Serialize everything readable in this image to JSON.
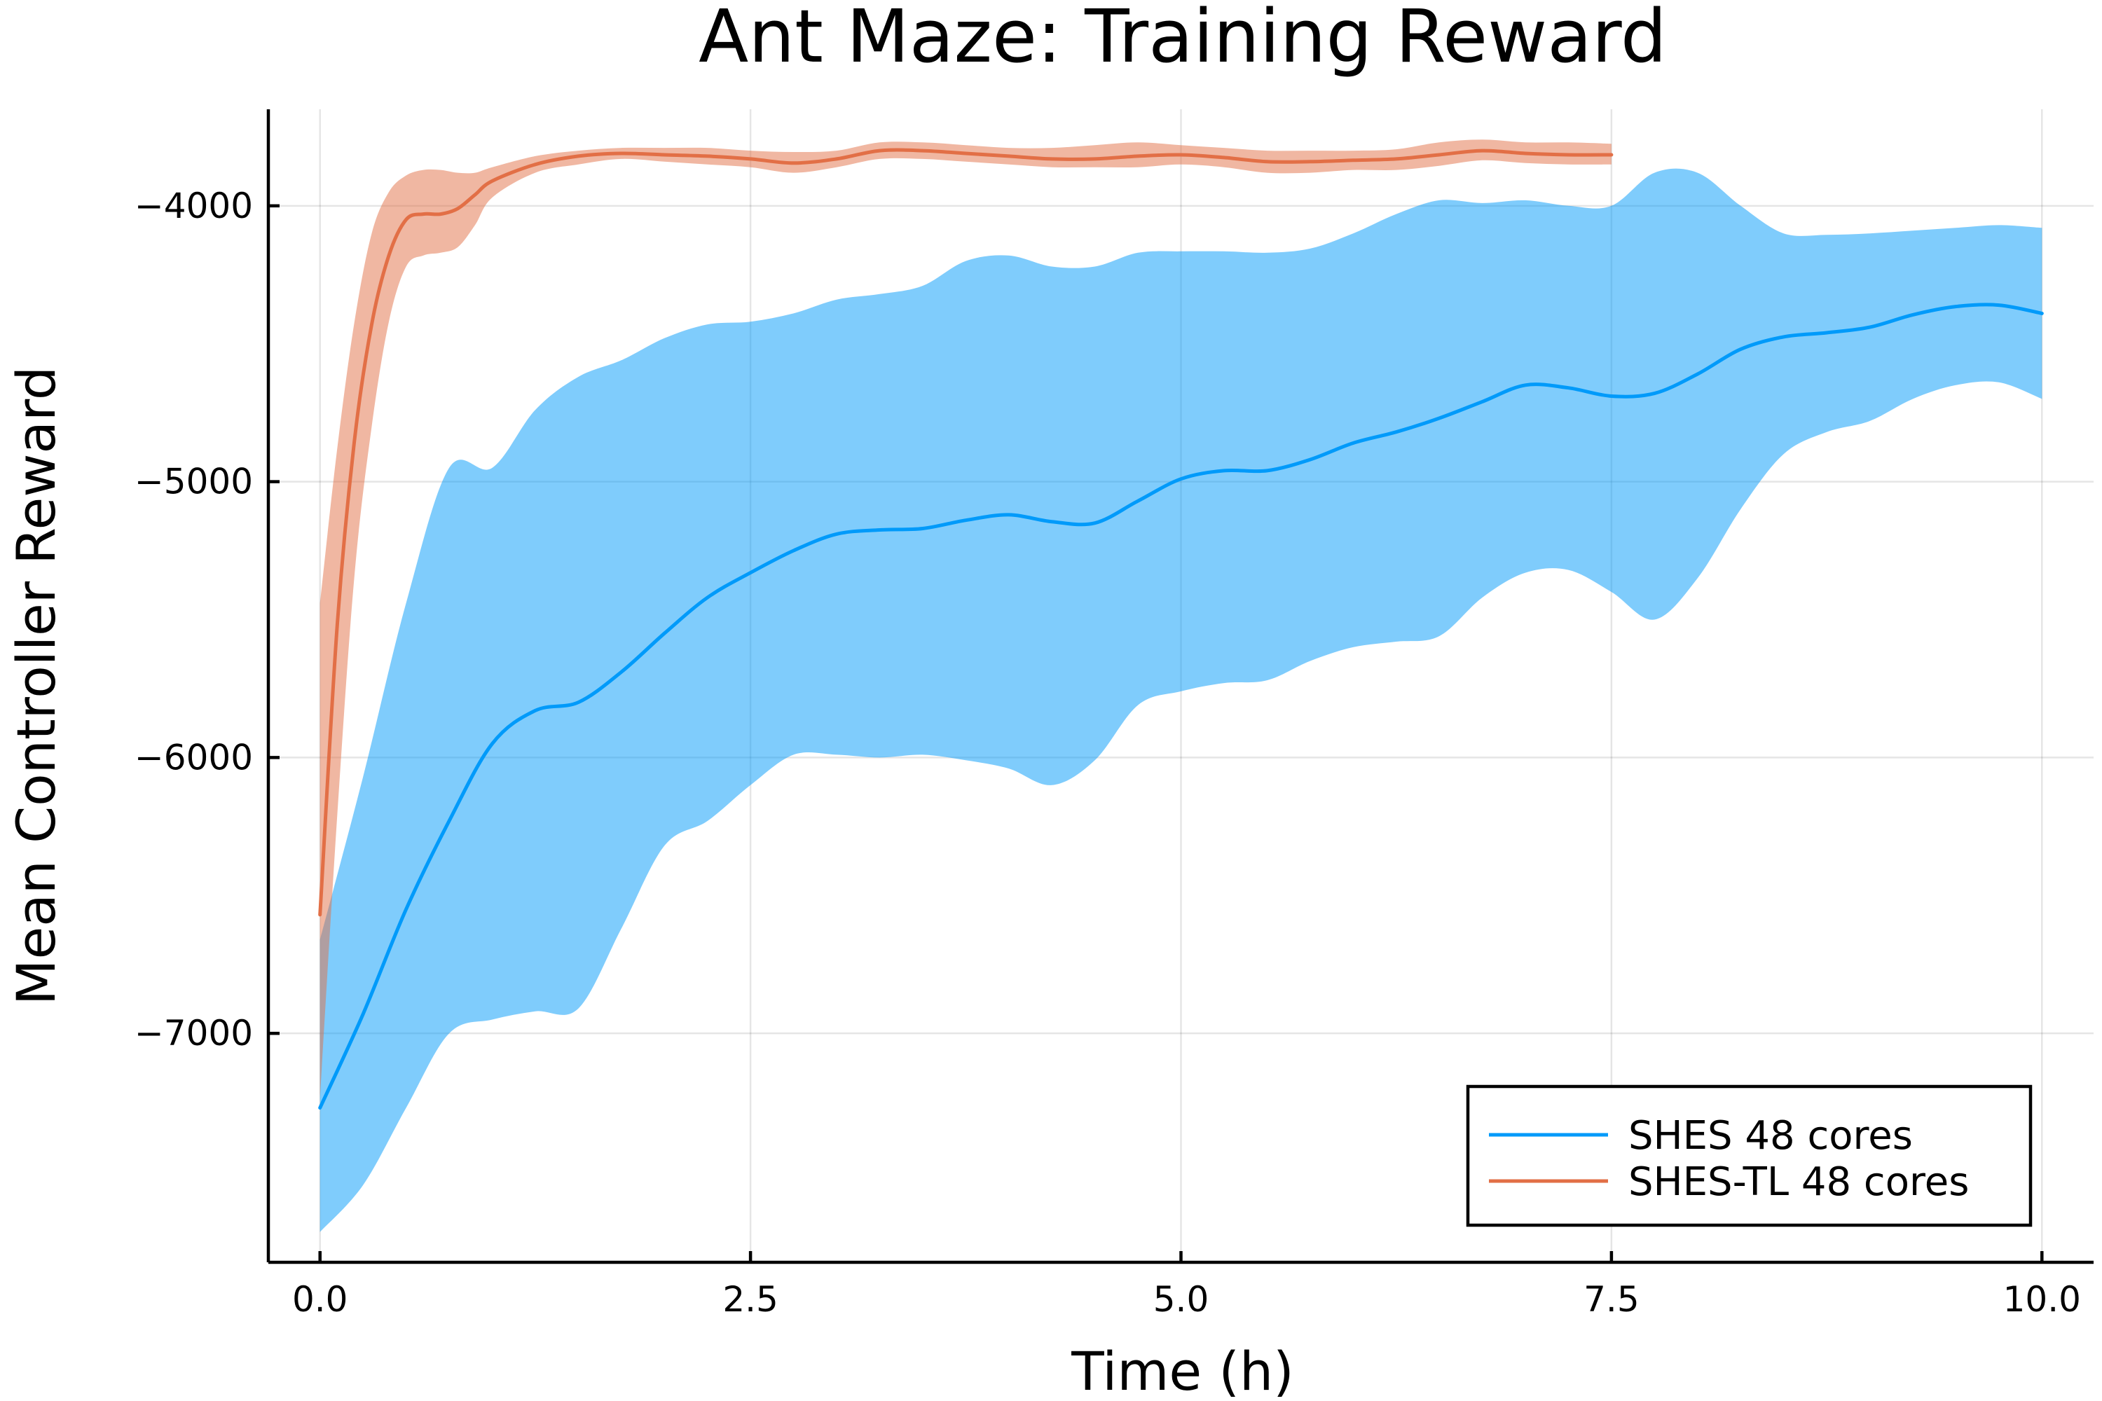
{
  "chart_data": {
    "type": "line",
    "title": "Ant Maze: Training Reward",
    "xlabel": "Time (h)",
    "ylabel": "Mean Controller Reward",
    "xlim": [
      -0.3,
      10.3
    ],
    "ylim": [
      -7830,
      -3650
    ],
    "xticks": [
      0.0,
      2.5,
      5.0,
      7.5,
      10.0
    ],
    "xtick_labels": [
      "0.0",
      "2.5",
      "5.0",
      "7.5",
      "10.0"
    ],
    "yticks": [
      -4000,
      -5000,
      -6000,
      -7000
    ],
    "ytick_labels": [
      "−4000",
      "−5000",
      "−6000",
      "−7000"
    ],
    "grid": true,
    "legend_position": "bottom-right",
    "series": [
      {
        "name": "SHES 48 cores",
        "color": "#009AFA",
        "band_color": "#009AFA",
        "x": [
          0.0,
          0.25,
          0.5,
          0.75,
          1.0,
          1.25,
          1.5,
          1.75,
          2.0,
          2.25,
          2.5,
          2.75,
          3.0,
          3.25,
          3.5,
          3.75,
          4.0,
          4.25,
          4.5,
          4.75,
          5.0,
          5.25,
          5.5,
          5.75,
          6.0,
          6.25,
          6.5,
          6.75,
          7.0,
          7.25,
          7.5,
          7.75,
          8.0,
          8.25,
          8.5,
          8.75,
          9.0,
          9.25,
          9.5,
          9.75,
          10.0
        ],
        "y": [
          -7270,
          -6930,
          -6550,
          -6230,
          -5950,
          -5830,
          -5800,
          -5690,
          -5550,
          -5420,
          -5330,
          -5250,
          -5190,
          -5175,
          -5170,
          -5140,
          -5120,
          -5145,
          -5150,
          -5070,
          -4990,
          -4960,
          -4960,
          -4920,
          -4860,
          -4820,
          -4770,
          -4710,
          -4650,
          -4660,
          -4690,
          -4680,
          -4610,
          -4520,
          -4475,
          -4460,
          -4440,
          -4395,
          -4365,
          -4360,
          -4390
        ],
        "upper": [
          -6660,
          -6070,
          -5440,
          -4950,
          -4950,
          -4740,
          -4620,
          -4560,
          -4480,
          -4430,
          -4420,
          -4390,
          -4340,
          -4320,
          -4290,
          -4200,
          -4180,
          -4220,
          -4220,
          -4170,
          -4165,
          -4165,
          -4170,
          -4155,
          -4100,
          -4030,
          -3980,
          -3990,
          -3980,
          -4000,
          -4000,
          -3880,
          -3880,
          -4000,
          -4100,
          -4105,
          -4100,
          -4090,
          -4080,
          -4070,
          -4080
        ],
        "lower": [
          -7720,
          -7550,
          -7270,
          -7000,
          -6950,
          -6920,
          -6910,
          -6620,
          -6320,
          -6230,
          -6100,
          -5990,
          -5990,
          -6000,
          -5990,
          -6010,
          -6040,
          -6100,
          -6010,
          -5810,
          -5760,
          -5730,
          -5720,
          -5650,
          -5600,
          -5580,
          -5560,
          -5420,
          -5330,
          -5320,
          -5400,
          -5500,
          -5350,
          -5100,
          -4900,
          -4820,
          -4780,
          -4700,
          -4650,
          -4640,
          -4700
        ]
      },
      {
        "name": "SHES-TL 48 cores",
        "color": "#E26F46",
        "band_color": "#E26F46",
        "x": [
          0.0,
          0.1,
          0.2,
          0.3,
          0.4,
          0.5,
          0.6,
          0.7,
          0.8,
          0.9,
          1.0,
          1.25,
          1.5,
          1.75,
          2.0,
          2.25,
          2.5,
          2.75,
          3.0,
          3.25,
          3.5,
          3.75,
          4.0,
          4.25,
          4.5,
          4.75,
          5.0,
          5.25,
          5.5,
          5.75,
          6.0,
          6.25,
          6.5,
          6.75,
          7.0,
          7.25,
          7.5
        ],
        "y": [
          -6570,
          -5520,
          -4850,
          -4430,
          -4180,
          -4050,
          -4030,
          -4030,
          -4010,
          -3960,
          -3910,
          -3850,
          -3820,
          -3810,
          -3815,
          -3820,
          -3830,
          -3845,
          -3830,
          -3800,
          -3800,
          -3810,
          -3820,
          -3830,
          -3830,
          -3820,
          -3815,
          -3825,
          -3840,
          -3840,
          -3835,
          -3830,
          -3815,
          -3800,
          -3810,
          -3815,
          -3815
        ],
        "upper": [
          -5440,
          -4880,
          -4420,
          -4100,
          -3950,
          -3890,
          -3870,
          -3870,
          -3880,
          -3880,
          -3860,
          -3820,
          -3800,
          -3790,
          -3790,
          -3790,
          -3800,
          -3805,
          -3800,
          -3770,
          -3770,
          -3780,
          -3790,
          -3790,
          -3780,
          -3770,
          -3780,
          -3790,
          -3800,
          -3800,
          -3800,
          -3795,
          -3770,
          -3760,
          -3770,
          -3770,
          -3775
        ],
        "lower": [
          -7230,
          -6210,
          -5340,
          -4800,
          -4420,
          -4220,
          -4180,
          -4170,
          -4150,
          -4070,
          -3970,
          -3880,
          -3850,
          -3830,
          -3840,
          -3850,
          -3860,
          -3880,
          -3860,
          -3830,
          -3830,
          -3840,
          -3850,
          -3860,
          -3860,
          -3860,
          -3850,
          -3860,
          -3880,
          -3880,
          -3870,
          -3870,
          -3855,
          -3835,
          -3845,
          -3850,
          -3850
        ]
      }
    ]
  }
}
